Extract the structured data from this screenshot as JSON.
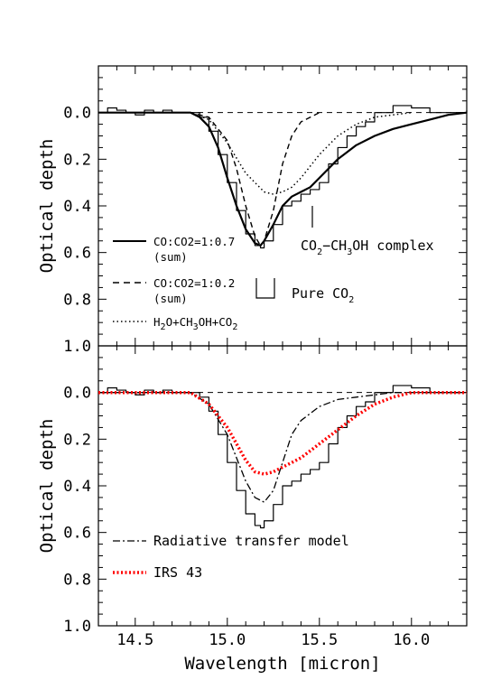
{
  "chart_data": {
    "type": "line",
    "xlabel": "Wavelength [micron]",
    "xlim": [
      14.3,
      16.3
    ],
    "x_ticks": [
      "14.5",
      "15.0",
      "15.5",
      "16.0"
    ],
    "panels": [
      {
        "id": "top",
        "ylabel": "Optical depth",
        "ylim": [
          1.0,
          -0.2
        ],
        "y_ticks": [
          "0.0",
          "0.2",
          "0.4",
          "0.6",
          "0.8",
          "1.0"
        ],
        "series": [
          {
            "name": "observed",
            "style": "histogram",
            "color": "#000000",
            "x": [
              14.3,
              14.35,
              14.4,
              14.45,
              14.5,
              14.55,
              14.6,
              14.65,
              14.7,
              14.75,
              14.8,
              14.85,
              14.9,
              14.95,
              15.0,
              15.05,
              15.1,
              15.15,
              15.18,
              15.2,
              15.25,
              15.3,
              15.35,
              15.4,
              15.45,
              15.5,
              15.55,
              15.6,
              15.65,
              15.7,
              15.75,
              15.8,
              15.9,
              16.0,
              16.1,
              16.2,
              16.3
            ],
            "y": [
              0.0,
              -0.02,
              -0.01,
              0.0,
              0.01,
              -0.01,
              0.0,
              -0.01,
              0.0,
              0.0,
              0.0,
              0.02,
              0.08,
              0.18,
              0.3,
              0.42,
              0.52,
              0.57,
              0.58,
              0.55,
              0.48,
              0.4,
              0.38,
              0.35,
              0.33,
              0.3,
              0.22,
              0.15,
              0.1,
              0.06,
              0.04,
              0.0,
              -0.03,
              -0.02,
              0.0,
              0.0,
              -0.01
            ]
          },
          {
            "name": "CO:CO2=1:0.7 (sum)",
            "style": "solid",
            "color": "#000000",
            "x": [
              14.3,
              14.5,
              14.7,
              14.8,
              14.85,
              14.9,
              14.95,
              15.0,
              15.05,
              15.1,
              15.15,
              15.18,
              15.2,
              15.25,
              15.3,
              15.35,
              15.4,
              15.45,
              15.5,
              15.6,
              15.7,
              15.8,
              15.9,
              16.0,
              16.1,
              16.2,
              16.3
            ],
            "y": [
              0.0,
              0.0,
              0.0,
              0.0,
              0.02,
              0.06,
              0.15,
              0.28,
              0.4,
              0.5,
              0.56,
              0.57,
              0.55,
              0.48,
              0.4,
              0.36,
              0.34,
              0.32,
              0.28,
              0.2,
              0.14,
              0.1,
              0.07,
              0.05,
              0.03,
              0.01,
              0.0
            ]
          },
          {
            "name": "CO:CO2=1:0.2 (sum)",
            "style": "dashed",
            "color": "#000000",
            "x": [
              14.3,
              14.8,
              14.9,
              15.0,
              15.05,
              15.1,
              15.15,
              15.18,
              15.2,
              15.25,
              15.3,
              15.35,
              15.4,
              15.5
            ],
            "y": [
              0.0,
              0.0,
              0.02,
              0.12,
              0.24,
              0.4,
              0.53,
              0.57,
              0.55,
              0.42,
              0.22,
              0.1,
              0.04,
              0.0
            ]
          },
          {
            "name": "H2O+CH3OH+CO2",
            "style": "dotted",
            "color": "#000000",
            "x": [
              14.3,
              14.8,
              14.9,
              15.0,
              15.1,
              15.2,
              15.25,
              15.3,
              15.35,
              15.4,
              15.5,
              15.6,
              15.7,
              15.8,
              15.9,
              16.0
            ],
            "y": [
              0.0,
              0.0,
              0.03,
              0.13,
              0.26,
              0.34,
              0.35,
              0.34,
              0.32,
              0.28,
              0.18,
              0.1,
              0.05,
              0.02,
              0.01,
              0.0
            ]
          }
        ],
        "zero_line": 0.0
      },
      {
        "id": "bottom",
        "ylabel": "Optical depth",
        "ylim": [
          1.0,
          -0.2
        ],
        "y_ticks": [
          "0.0",
          "0.2",
          "0.4",
          "0.6",
          "0.8",
          "1.0"
        ],
        "series": [
          {
            "name": "observed",
            "style": "histogram",
            "color": "#000000",
            "x": [
              14.3,
              14.35,
              14.4,
              14.45,
              14.5,
              14.55,
              14.6,
              14.65,
              14.7,
              14.75,
              14.8,
              14.85,
              14.9,
              14.95,
              15.0,
              15.05,
              15.1,
              15.15,
              15.18,
              15.2,
              15.25,
              15.3,
              15.35,
              15.4,
              15.45,
              15.5,
              15.55,
              15.6,
              15.65,
              15.7,
              15.75,
              15.8,
              15.9,
              16.0,
              16.1,
              16.2,
              16.3
            ],
            "y": [
              0.0,
              -0.02,
              -0.01,
              0.0,
              0.01,
              -0.01,
              0.0,
              -0.01,
              0.0,
              0.0,
              0.0,
              0.02,
              0.08,
              0.18,
              0.3,
              0.42,
              0.52,
              0.57,
              0.58,
              0.55,
              0.48,
              0.4,
              0.38,
              0.35,
              0.33,
              0.3,
              0.22,
              0.15,
              0.1,
              0.06,
              0.04,
              0.0,
              -0.03,
              -0.02,
              0.0,
              0.0,
              -0.01
            ]
          },
          {
            "name": "Radiative transfer model",
            "style": "dashdot",
            "color": "#000000",
            "x": [
              14.3,
              14.8,
              14.9,
              15.0,
              15.05,
              15.1,
              15.15,
              15.2,
              15.25,
              15.3,
              15.35,
              15.4,
              15.5,
              15.6,
              15.7,
              15.8,
              15.9,
              16.0,
              16.3
            ],
            "y": [
              0.0,
              0.0,
              0.05,
              0.18,
              0.28,
              0.38,
              0.45,
              0.47,
              0.42,
              0.3,
              0.18,
              0.12,
              0.06,
              0.03,
              0.02,
              0.01,
              0.0,
              0.0,
              0.0
            ]
          },
          {
            "name": "IRS 43",
            "style": "dotted-thick",
            "color": "#ff0000",
            "x": [
              14.3,
              14.5,
              14.8,
              14.9,
              15.0,
              15.05,
              15.1,
              15.15,
              15.2,
              15.25,
              15.3,
              15.35,
              15.4,
              15.5,
              15.6,
              15.7,
              15.8,
              15.9,
              16.0,
              16.1,
              16.3
            ],
            "y": [
              0.0,
              0.0,
              0.0,
              0.05,
              0.15,
              0.22,
              0.29,
              0.34,
              0.35,
              0.34,
              0.32,
              0.3,
              0.28,
              0.22,
              0.16,
              0.1,
              0.05,
              0.02,
              0.0,
              0.0,
              0.0
            ]
          }
        ],
        "zero_line": 0.0
      }
    ],
    "annotations": {
      "complex": "CO2−CH3OH complex",
      "pure": "Pure CO2"
    }
  },
  "legend": {
    "top": [
      {
        "label": "CO:CO2=1:0.7",
        "sub": "(sum)",
        "style": "solid"
      },
      {
        "label": "CO:CO2=1:0.2",
        "sub": "(sum)",
        "style": "dashed"
      },
      {
        "label": "H2O+CH3OH+CO2",
        "style": "dotted"
      }
    ],
    "bottom": [
      {
        "label": "Radiative transfer model",
        "style": "dashdot"
      },
      {
        "label": "IRS 43",
        "style": "dotted-thick",
        "color": "#ff0000"
      }
    ]
  }
}
